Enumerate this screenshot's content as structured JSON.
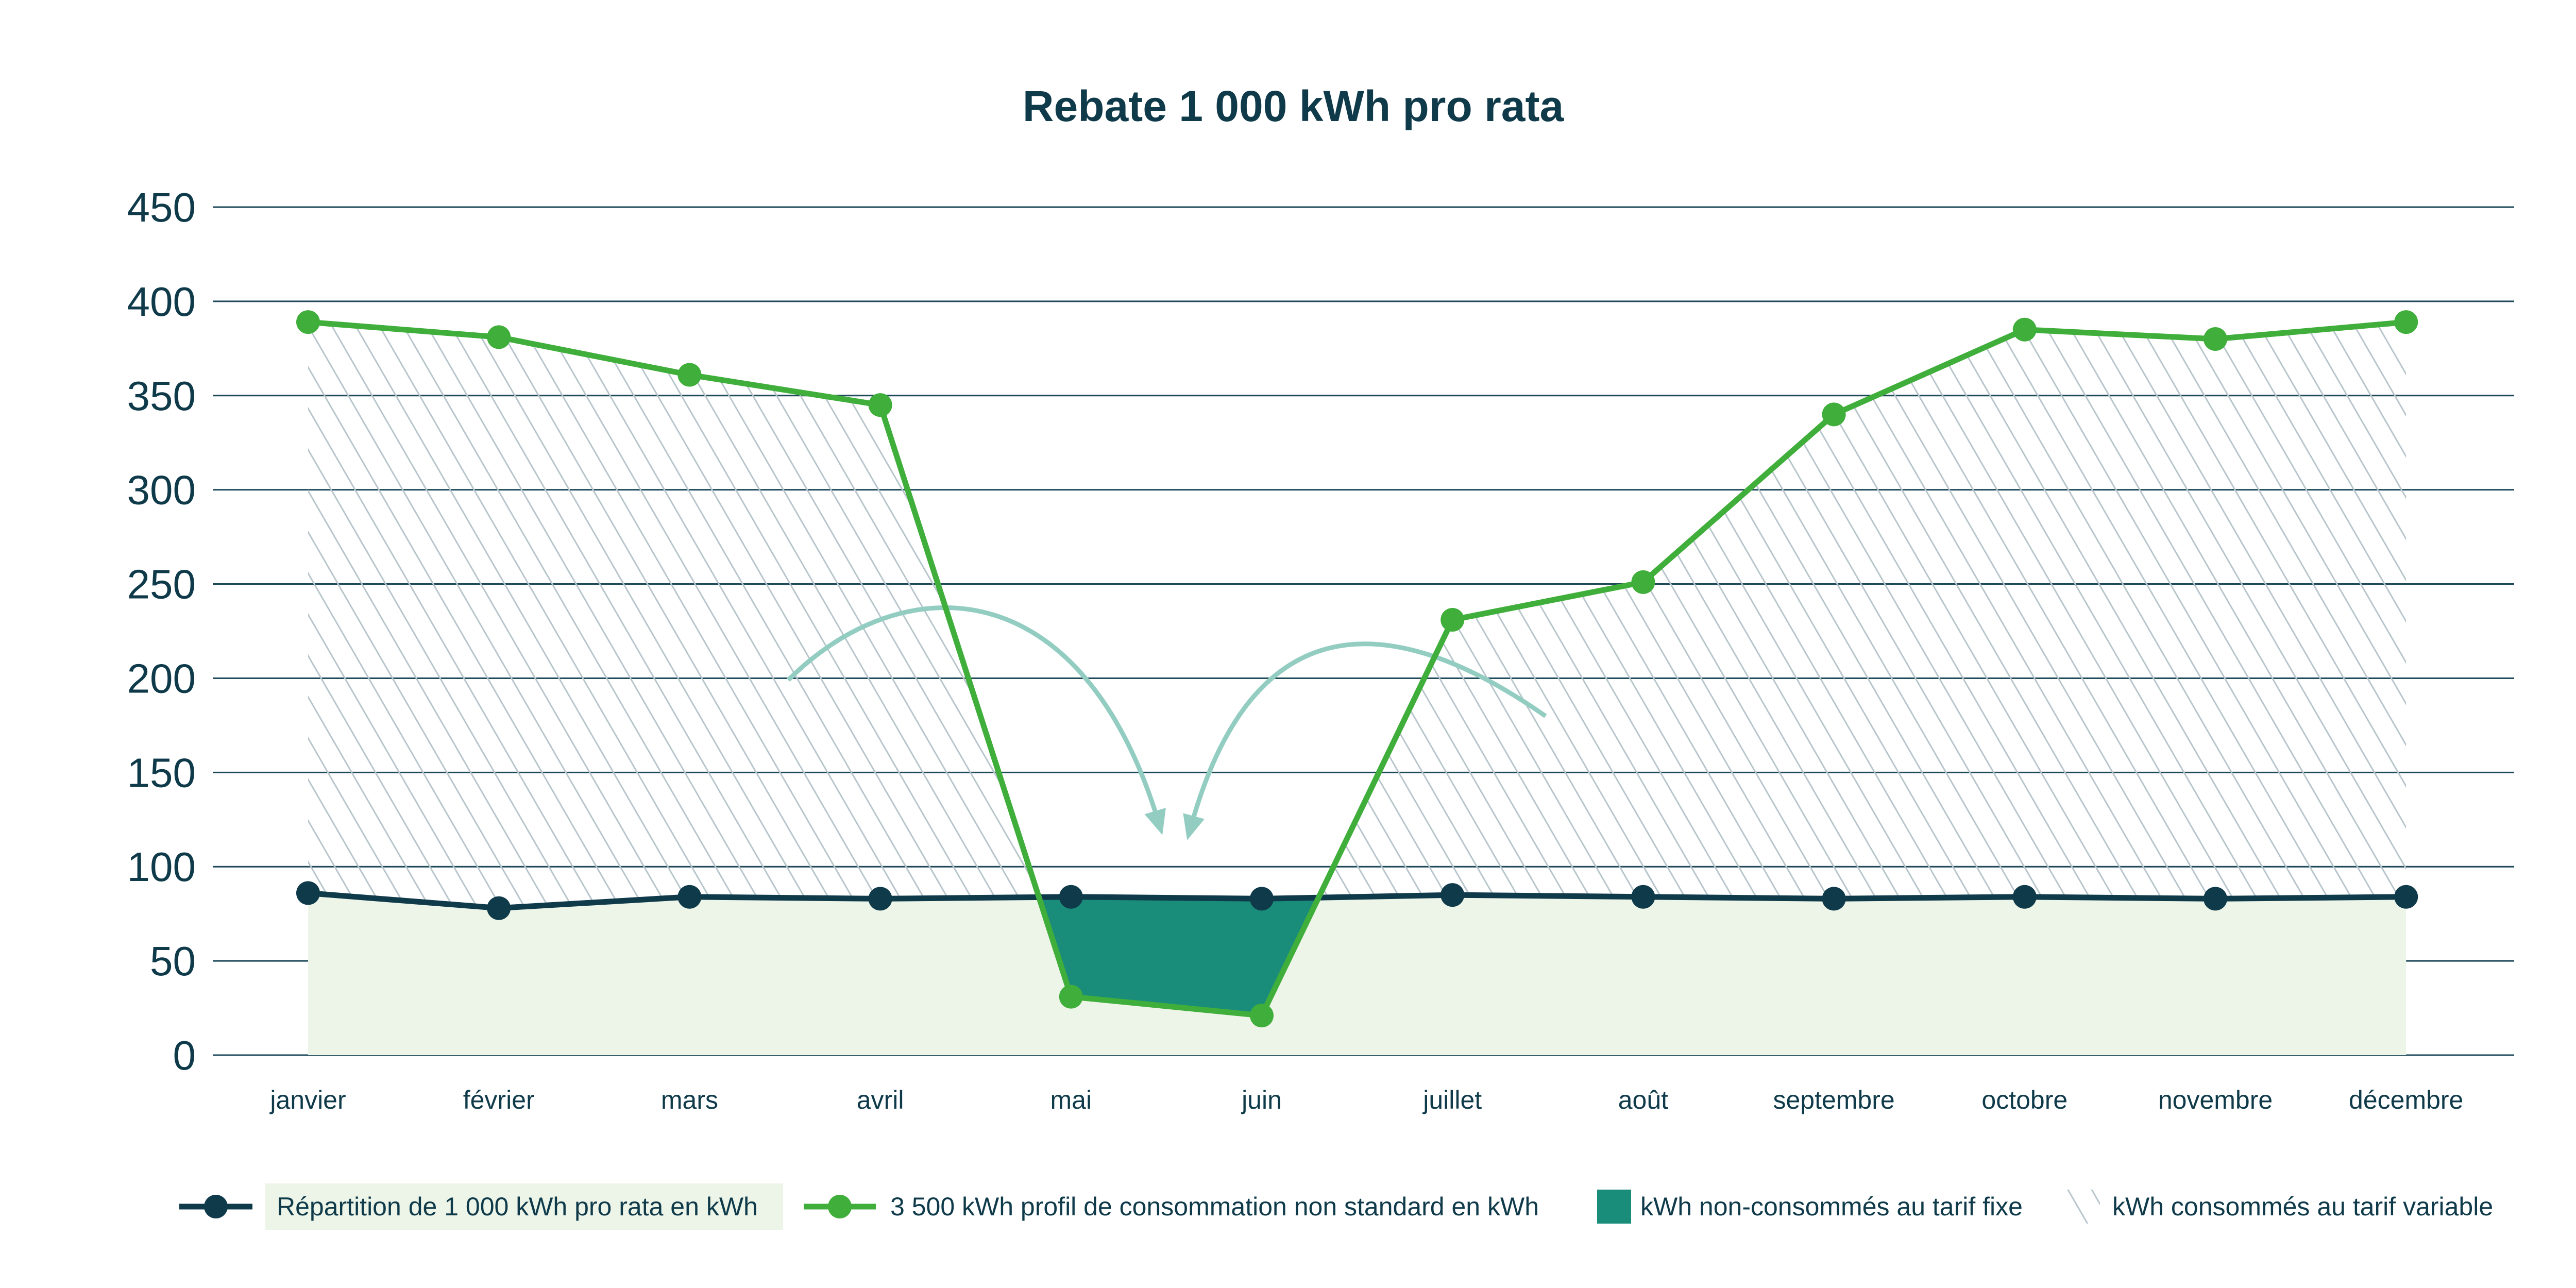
{
  "chart_data": {
    "type": "line",
    "title": "Rebate 1 000 kWh pro rata",
    "xlabel": "",
    "ylabel": "",
    "ylim": [
      0,
      450
    ],
    "yticks": [
      0,
      50,
      100,
      150,
      200,
      250,
      300,
      350,
      400,
      450
    ],
    "grid": true,
    "legend_position": "bottom",
    "categories": [
      "janvier",
      "février",
      "mars",
      "avril",
      "mai",
      "juin",
      "juillet",
      "août",
      "septembre",
      "octobre",
      "novembre",
      "décembre"
    ],
    "series": [
      {
        "name": "Répartition de 1 000 kWh pro rata en kWh",
        "color": "#0f3a4a",
        "values": [
          86,
          78,
          84,
          83,
          84,
          83,
          85,
          84,
          83,
          84,
          83,
          84
        ]
      },
      {
        "name": "3 500 kWh profil de consommation non standard en kWh",
        "color": "#3fae3a",
        "values": [
          389,
          381,
          361,
          345,
          31,
          21,
          231,
          251,
          340,
          385,
          380,
          389
        ]
      }
    ],
    "areas": [
      {
        "name": "kWh non-consommés au tarif fixe",
        "color": "#1a8c7a",
        "style": "solid"
      },
      {
        "name": "kWh consommés au tarif variable",
        "color": "#b8c6cc",
        "style": "hatched"
      }
    ],
    "base_fill_color": "#edf4e8",
    "arrow_color": "#93cdc2"
  }
}
